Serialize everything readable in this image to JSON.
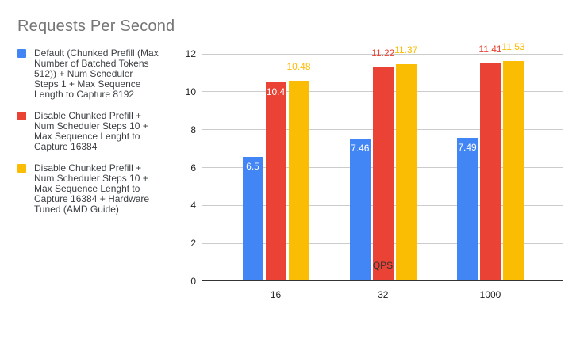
{
  "title": "Requests Per Second",
  "colors": {
    "series_blue": "#4285F4",
    "series_red": "#EA4335",
    "series_yellow": "#FBBC04",
    "title_text": "#757575",
    "legend_text": "#3c4043",
    "axis_text": "#222222",
    "gridline": "#cccccc",
    "axis_line": "#333333",
    "background": "#ffffff"
  },
  "legend": {
    "items": [
      {
        "color": "#4285F4",
        "label": "Default (Chunked Prefill (Max\nNumber of Batched Tokens\n512)) + Num Scheduler\nSteps 1 + Max Sequence\nLength to Capture 8192"
      },
      {
        "color": "#EA4335",
        "label": "Disable Chunked Prefill +\nNum Scheduler Steps 10 +\nMax Sequence Lenght to\nCapture 16384"
      },
      {
        "color": "#FBBC04",
        "label": "Disable Chunked Prefill +\nNum Scheduler Steps 10 +\nMax Sequence Lenght to\nCapture 16384 + Hardware\nTuned (AMD Guide)"
      }
    ]
  },
  "chart_data": {
    "type": "bar",
    "title": "Requests Per Second",
    "xlabel": "QPS",
    "ylabel": "",
    "categories": [
      "16",
      "32",
      "1000"
    ],
    "ylim": [
      0,
      12
    ],
    "yticks": [
      0,
      2,
      4,
      6,
      8,
      10,
      12
    ],
    "grid": true,
    "legend_position": "left",
    "series": [
      {
        "name": "Default (Chunked Prefill (Max Number of Batched Tokens 512)) + Num Scheduler Steps 1 + Max Sequence Length to Capture 8192",
        "key": "default-chunked-prefill",
        "color": "#4285F4",
        "values": [
          6.5,
          7.46,
          7.49
        ],
        "labels": [
          "6.5",
          "7.46",
          "7.49"
        ],
        "label_placement": [
          "inside",
          "inside",
          "inside"
        ]
      },
      {
        "name": "Disable Chunked Prefill + Num Scheduler Steps 10 + Max Sequence Lenght to Capture 16384",
        "key": "disable-chunked-prefill",
        "color": "#EA4335",
        "values": [
          10.4,
          11.22,
          11.41
        ],
        "labels": [
          "10.4",
          "11.22",
          "11.41"
        ],
        "label_placement": [
          "inside",
          "above",
          "above"
        ]
      },
      {
        "name": "Disable Chunked Prefill + Num Scheduler Steps 10 + Max Sequence Lenght to Capture 16384 + Hardware Tuned (AMD Guide)",
        "key": "disable-chunked-prefill-hw-tuned",
        "color": "#FBBC04",
        "values": [
          10.48,
          11.37,
          11.53
        ],
        "labels": [
          "10.48",
          "11.37",
          "11.53"
        ],
        "label_placement": [
          "above",
          "above",
          "above"
        ]
      }
    ]
  }
}
